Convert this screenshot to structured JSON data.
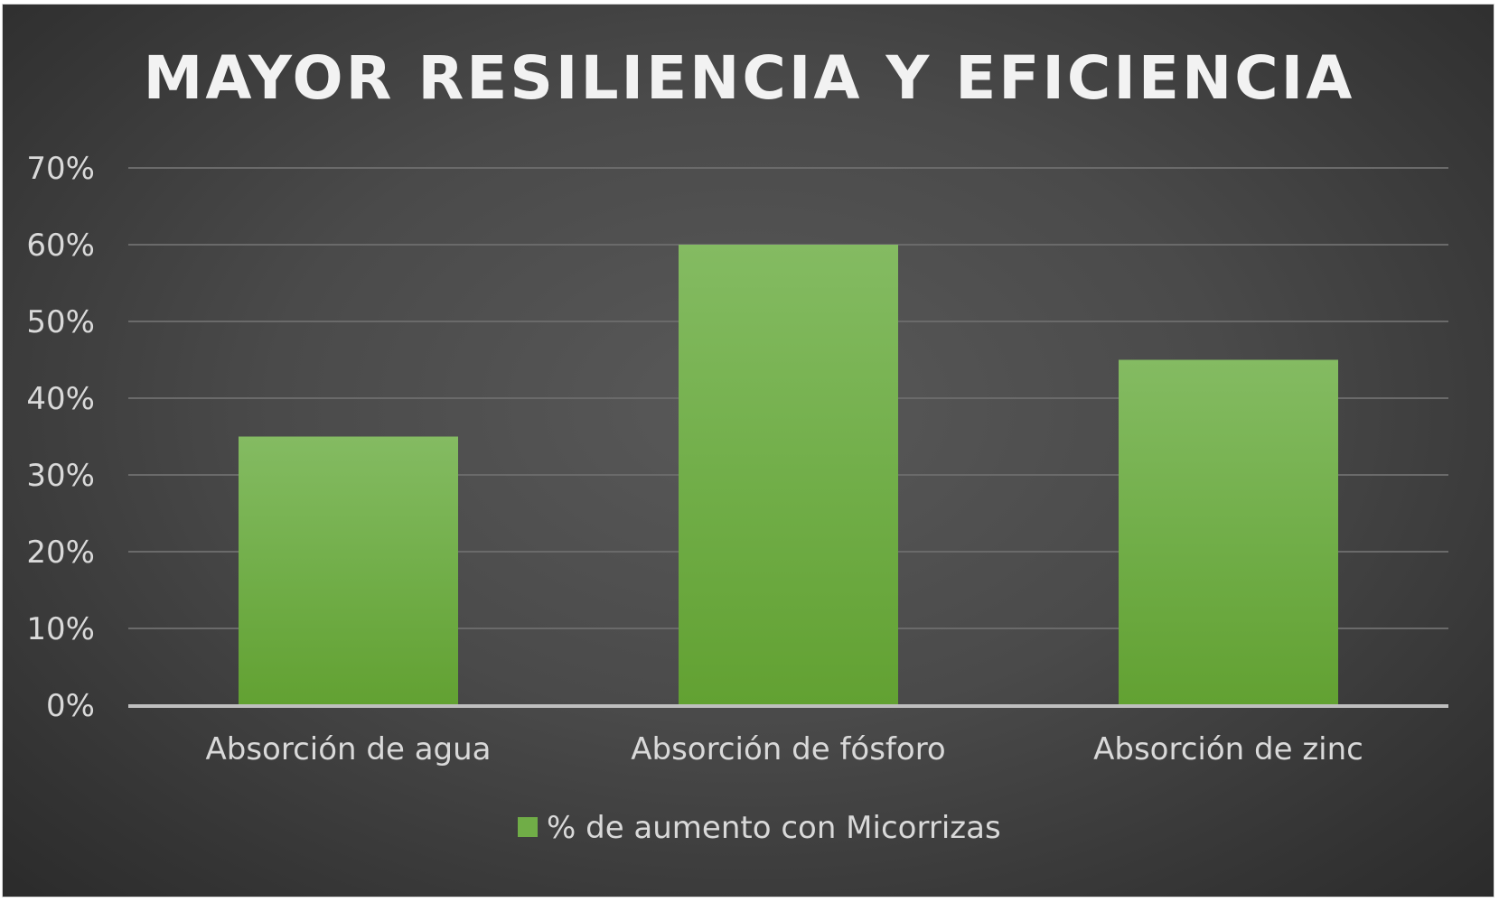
{
  "chart_data": {
    "type": "bar",
    "title": "MAYOR RESILIENCIA Y EFICIENCIA",
    "xlabel": "",
    "ylabel": "",
    "categories": [
      "Absorción de agua",
      "Absorción de fósforo",
      "Absorción de zinc"
    ],
    "series": [
      {
        "name": "% de aumento con Micorrizas",
        "values": [
          35,
          60,
          45
        ],
        "color": "#70ad47"
      }
    ],
    "ylim": [
      0,
      70
    ],
    "yticks": [
      0,
      10,
      20,
      30,
      40,
      50,
      60,
      70
    ],
    "ytick_labels": [
      "0%",
      "10%",
      "20%",
      "30%",
      "40%",
      "50%",
      "60%",
      "70%"
    ],
    "grid": true,
    "legend": "bottom",
    "colors": {
      "background": "#474747",
      "bar": "#70ad47",
      "grid": "#6a6a6a",
      "text": "#d9d9d9",
      "title": "#f2f2f2"
    }
  }
}
